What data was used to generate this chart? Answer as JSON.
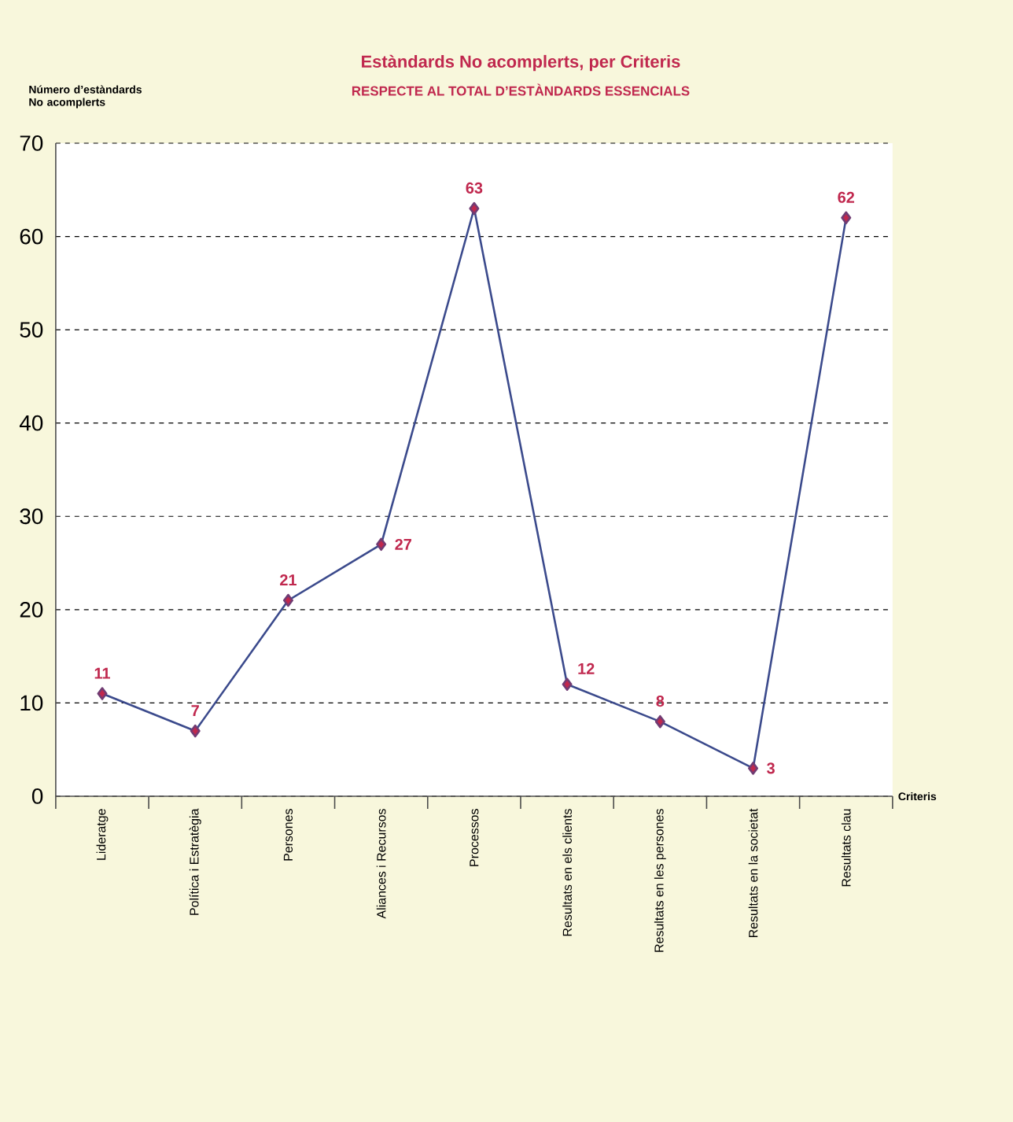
{
  "chart_data": {
    "type": "line",
    "title": "Estàndards No acomplerts, per Criteris",
    "subtitle": "RESPECTE AL TOTAL D’ESTÀNDARDS ESSENCIALS",
    "ylabel": "Número d’estàndards No acomplerts",
    "xlabel": "Criteris",
    "categories": [
      "Lideratge",
      "Política i Estratègia",
      "Persones",
      "Aliances i Recursos",
      "Processos",
      "Resultats en els clients",
      "Resultats en les persones",
      "Resultats en la societat",
      "Resultats clau"
    ],
    "series": [
      {
        "color": "#3b4a8c",
        "values": [
          11,
          7,
          21,
          27,
          63,
          12,
          8,
          3,
          62
        ]
      }
    ],
    "ylim": [
      0,
      70
    ],
    "yticks": [
      0,
      10,
      20,
      30,
      40,
      50,
      60,
      70
    ],
    "grid": "y",
    "marker": "diamond",
    "line_style": "solid",
    "data_labels": true
  }
}
